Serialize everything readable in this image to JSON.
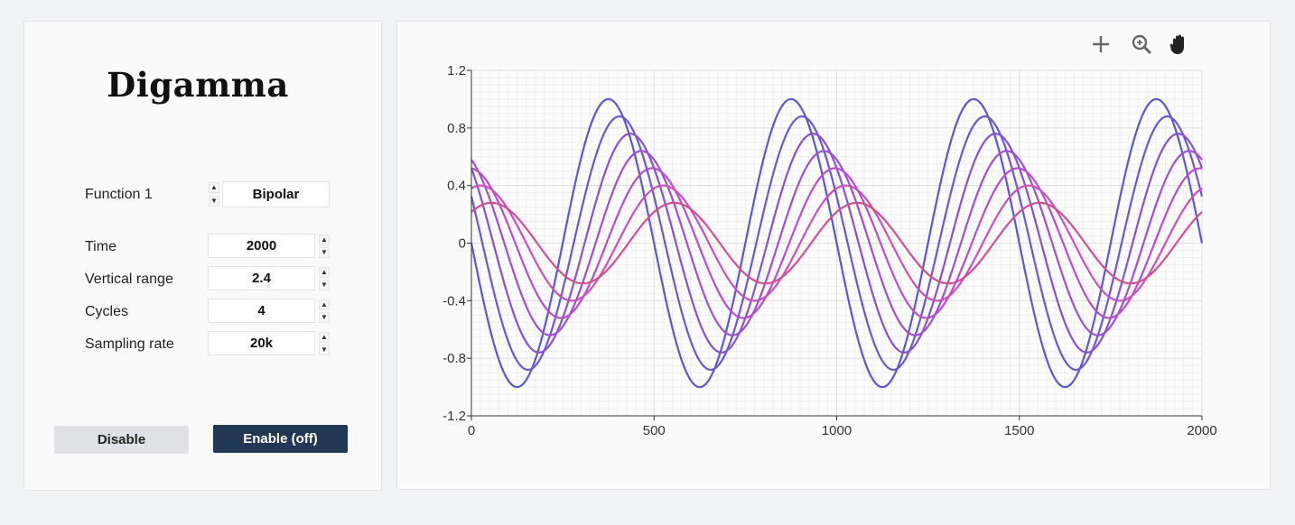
{
  "app": {
    "title": "Digamma"
  },
  "controls": {
    "function_label": "Function 1",
    "function_value": "Bipolar",
    "time_label": "Time",
    "time_value": "2000",
    "vertical_range_label": "Vertical range",
    "vertical_range_value": "2.4",
    "cycles_label": "Cycles",
    "cycles_value": "4",
    "sampling_rate_label": "Sampling rate",
    "sampling_rate_value": "20k"
  },
  "buttons": {
    "disable_label": "Disable",
    "enable_label": "Enable (off)"
  },
  "toolbar": {
    "icons": [
      "plus-icon",
      "zoom-icon",
      "pan-hand-icon"
    ]
  },
  "chart_data": {
    "type": "line",
    "xlim": [
      0,
      2000
    ],
    "ylim": [
      -1.2,
      1.2
    ],
    "x_ticks": [
      0,
      500,
      1000,
      1500,
      2000
    ],
    "y_ticks": [
      1.2,
      0.8,
      0.4,
      0,
      -0.4,
      -0.8,
      -1.2
    ],
    "y_tick_labels": [
      "1.2",
      "0.8",
      "0.4",
      "0",
      "-0.4",
      "-0.8",
      "-1.2"
    ],
    "grid": true,
    "period": 500,
    "series": [
      {
        "amplitude": 1.0,
        "peak_x": 375,
        "color": "#5b57d6"
      },
      {
        "amplitude": 0.88,
        "peak_x": 405,
        "color": "#6d55d8"
      },
      {
        "amplitude": 0.76,
        "peak_x": 435,
        "color": "#8552d6"
      },
      {
        "amplitude": 0.64,
        "peak_x": 465,
        "color": "#a04fd4"
      },
      {
        "amplitude": 0.52,
        "peak_x": 495,
        "color": "#b94dd0"
      },
      {
        "amplitude": 0.4,
        "peak_x": 525,
        "color": "#cc4fbe"
      },
      {
        "amplitude": 0.28,
        "peak_x": 555,
        "color": "#d24f92"
      }
    ]
  }
}
